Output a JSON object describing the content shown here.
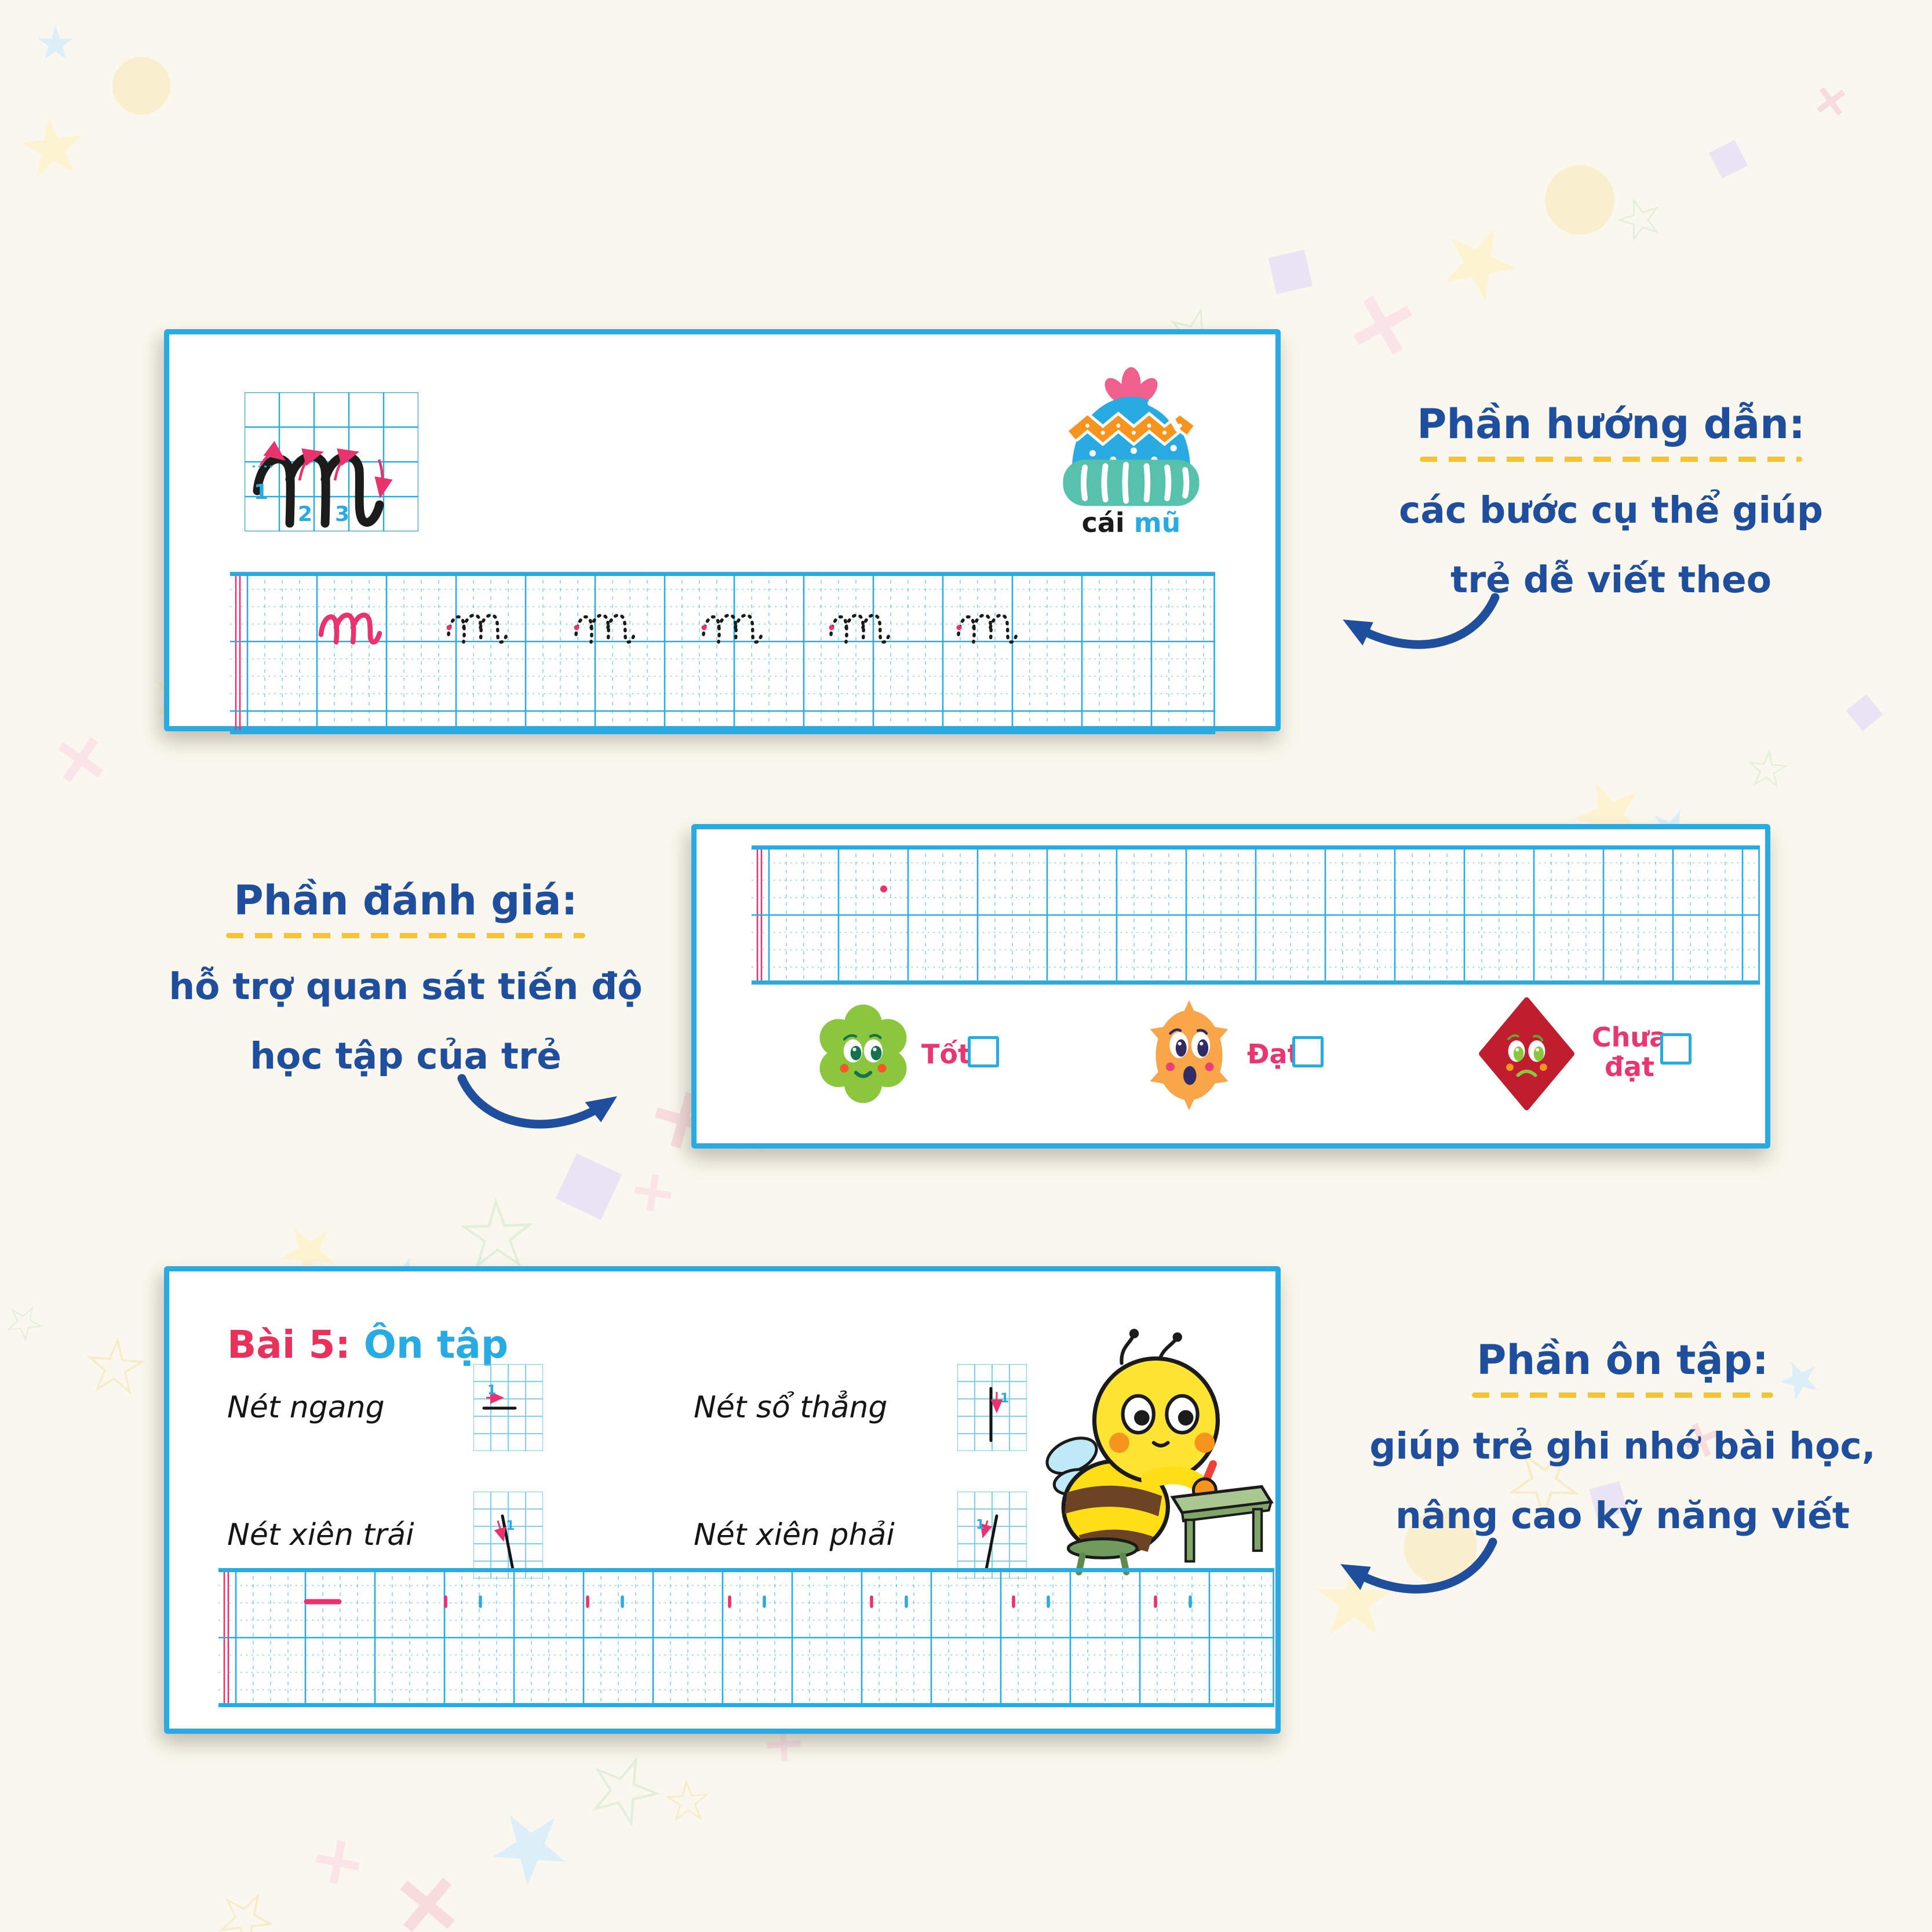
{
  "colors": {
    "cyan": "#29ABE2",
    "deep_blue": "#1F4E9C",
    "pink": "#E8336D",
    "yellow": "#F6C335",
    "red_label": "#E8315B"
  },
  "annotations": {
    "guide": {
      "title": "Phần hướng dẫn:",
      "line1": "các bước cụ thể giúp",
      "line2": "trẻ dễ viết theo"
    },
    "review": {
      "title": "Phần đánh giá:",
      "line1": "hỗ trợ quan sát tiến độ",
      "line2": "học tập của trẻ"
    },
    "recap": {
      "title": "Phần ôn tập:",
      "line1": "giúp trẻ ghi nhớ bài học,",
      "line2": "nâng cao kỹ năng viết"
    }
  },
  "guide_panel": {
    "letter": "m",
    "stroke_numbers": [
      "1",
      "2",
      "3"
    ],
    "caption": {
      "word_black": "cái",
      "word_blue": "mũ"
    }
  },
  "review_panel": {
    "ratings": [
      {
        "label": "Tốt",
        "icon": "flower-icon",
        "color": "#8CC63F"
      },
      {
        "label": "Đạt",
        "icon": "sun-icon",
        "color": "#F9A64A"
      },
      {
        "label": "Chưa đạt",
        "icon": "diamond-icon",
        "color": "#BE1E2D"
      }
    ]
  },
  "recap_panel": {
    "lesson_label": "Bài 5:",
    "lesson_title": "Ôn tập",
    "stroke_step": "1",
    "strokes": [
      {
        "label": "Nét ngang",
        "glyph": "horizontal"
      },
      {
        "label": "Nét sổ thẳng",
        "glyph": "vertical"
      },
      {
        "label": "Nét xiên trái",
        "glyph": "slant-left"
      },
      {
        "label": "Nét xiên phải",
        "glyph": "slant-right"
      }
    ]
  }
}
